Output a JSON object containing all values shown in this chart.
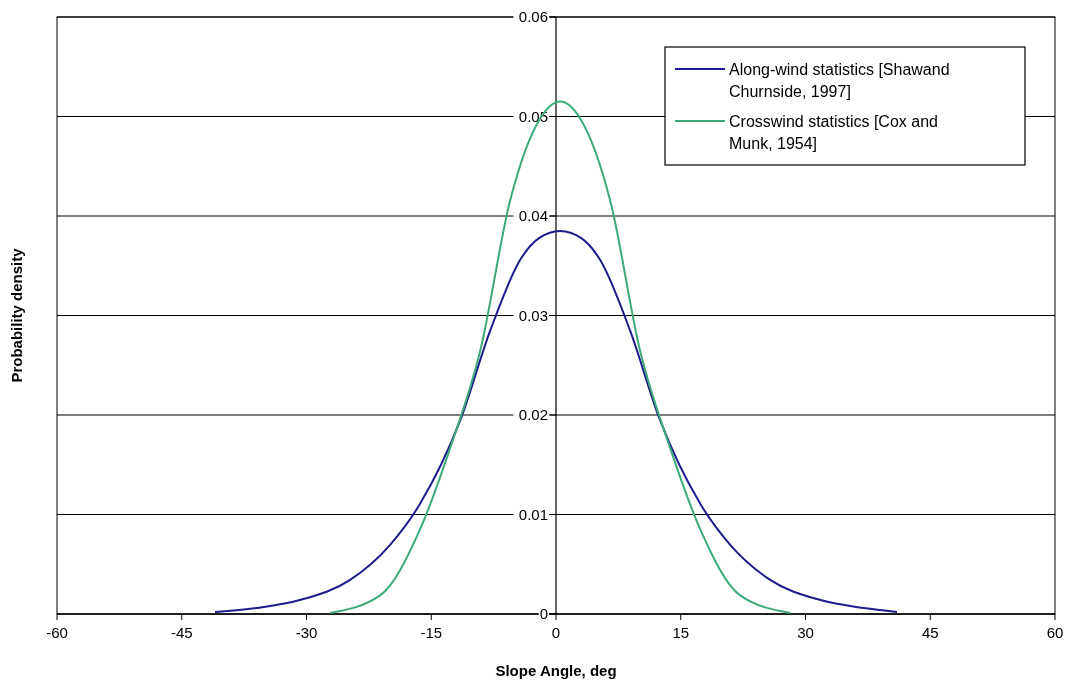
{
  "chart_data": {
    "type": "line",
    "xlabel": "Slope Angle, deg",
    "ylabel": "Probability density",
    "xlim": [
      -60,
      60
    ],
    "xticks": [
      -60,
      -45,
      -30,
      -15,
      0,
      15,
      30,
      45,
      60
    ],
    "ylim": [
      0,
      0.06
    ],
    "yticks": [
      0,
      0.01,
      0.02,
      0.03,
      0.04,
      0.05,
      0.06
    ],
    "grid": "y",
    "legend": "top right",
    "marker": "none",
    "line_style": "solid",
    "series": [
      {
        "name": "Along-wind statistics [Shawand Churnside, 1997]",
        "color": "#1c1c8c",
        "x": [
          -41,
          -36,
          -30.8,
          -24.8,
          -20,
          -16.4,
          -11.5,
          -7.9,
          -4.3,
          -2,
          0.5,
          3,
          5.3,
          8.9,
          12.5,
          17.4,
          21,
          25.8,
          31.8,
          37,
          41
        ],
        "values": [
          0.0002,
          0.0006,
          0.0014,
          0.0034,
          0.0069,
          0.011,
          0.0195,
          0.0285,
          0.0356,
          0.0378,
          0.0385,
          0.0378,
          0.0356,
          0.0285,
          0.0195,
          0.011,
          0.0069,
          0.0034,
          0.0014,
          0.0006,
          0.0002
        ]
      },
      {
        "name": "Crosswind statistics [Cox and Munk, 1954]",
        "color": "#3caa78",
        "x": [
          -27.2,
          -21.1,
          -16.4,
          -12.8,
          -9.1,
          -5.5,
          -1.9,
          0.5,
          2.9,
          6.5,
          10.1,
          13.8,
          17.4,
          22.1,
          28.2
        ],
        "values": [
          0.0001,
          0.0019,
          0.0084,
          0.0165,
          0.0265,
          0.0416,
          0.0498,
          0.0515,
          0.0498,
          0.0416,
          0.0265,
          0.0165,
          0.0084,
          0.0019,
          0.0001
        ]
      }
    ]
  }
}
